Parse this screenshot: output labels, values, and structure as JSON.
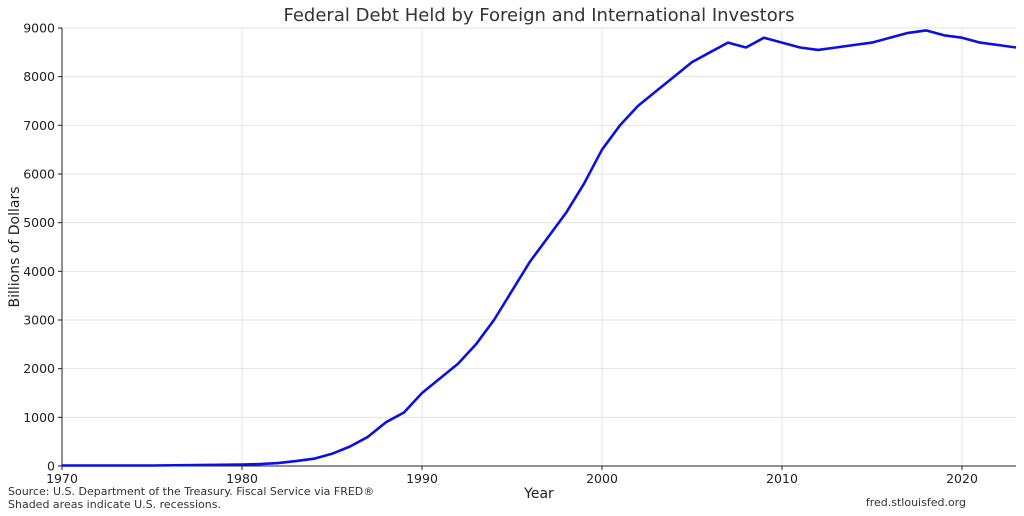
{
  "chart_data": {
    "type": "line",
    "title": "Federal Debt Held by Foreign and International Investors",
    "xlabel": "Year",
    "ylabel": "Billions of Dollars",
    "xlim": [
      1970,
      2023
    ],
    "ylim": [
      0,
      9000
    ],
    "xticks": [
      1970,
      1980,
      1990,
      2000,
      2010,
      2020
    ],
    "yticks": [
      0,
      1000,
      2000,
      3000,
      4000,
      5000,
      6000,
      7000,
      8000,
      9000
    ],
    "grid": true,
    "line_color": "#0a10e0",
    "series": [
      {
        "x": [
          1970,
          1975,
          1980,
          1981,
          1982,
          1983,
          1984,
          1985,
          1986,
          1987,
          1988,
          1989,
          1990,
          1991,
          1992,
          1993,
          1994,
          1995,
          1996,
          1997,
          1998,
          1999,
          2000,
          2001,
          2002,
          2003,
          2004,
          2005,
          2006,
          2007,
          2008,
          2009,
          2010,
          2011,
          2012,
          2013,
          2014,
          2015,
          2016,
          2017,
          2018,
          2019,
          2020,
          2021,
          2022,
          2023
        ],
        "values": [
          10,
          10,
          30,
          40,
          60,
          100,
          150,
          250,
          400,
          600,
          900,
          1100,
          1500,
          1800,
          2100,
          2500,
          3000,
          3600,
          4200,
          4700,
          5200,
          5800,
          6500,
          7000,
          7400,
          7700,
          8000,
          8300,
          8500,
          8700,
          8600,
          8800,
          8700,
          8600,
          8550,
          8600,
          8650,
          8700,
          8800,
          8900,
          8950,
          8850,
          8800,
          8700,
          8650,
          8600
        ]
      }
    ]
  },
  "footer": {
    "source_line1": "Source: U.S. Department of the Treasury. Fiscal Service via FRED®",
    "source_line2": "Shaded areas indicate U.S. recessions.",
    "site": "fred.stlouisfed.org"
  }
}
